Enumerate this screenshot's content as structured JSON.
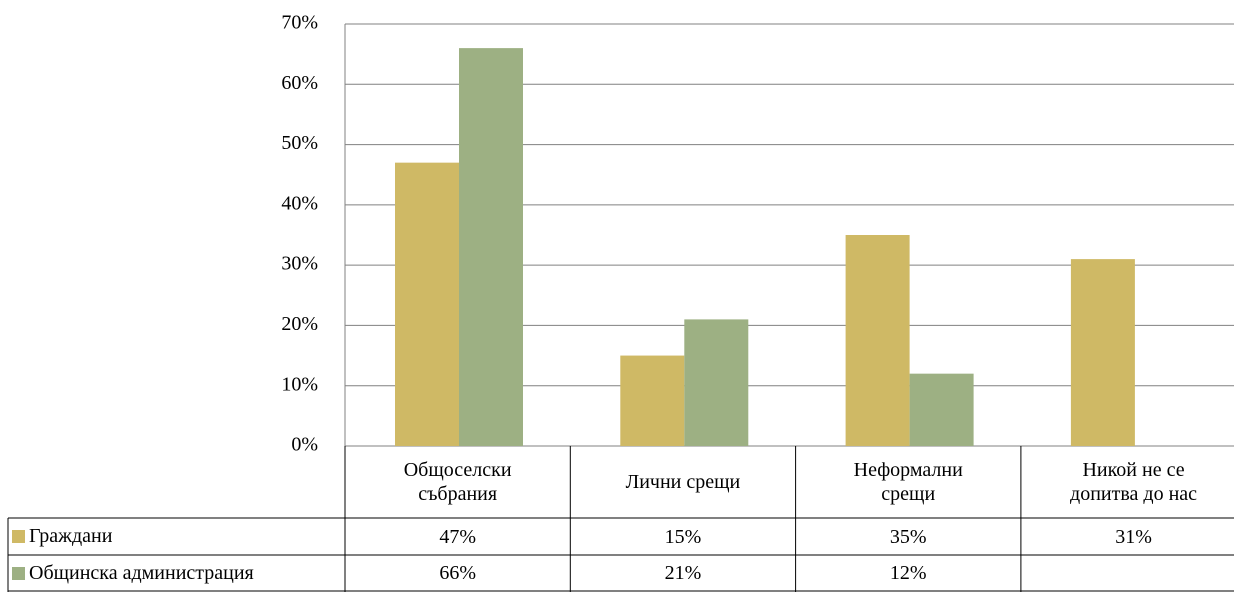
{
  "chart_data": {
    "type": "bar",
    "categories": [
      "Общоселски събрания",
      "Лични срещи",
      "Неформални срещи",
      "Никой не се допитва до нас"
    ],
    "series": [
      {
        "name": "Граждани",
        "color": "#cfb965",
        "values": [
          47,
          15,
          35,
          31
        ],
        "value_labels": [
          "47%",
          "15%",
          "35%",
          "31%"
        ]
      },
      {
        "name": "Общинска администрация",
        "color": "#9db083",
        "values": [
          66,
          21,
          12,
          null
        ],
        "value_labels": [
          "66%",
          "21%",
          "12%",
          null
        ]
      }
    ],
    "ylim": [
      0,
      70
    ],
    "yticks": [
      {
        "value": 0,
        "label": "0%"
      },
      {
        "value": 10,
        "label": "10%"
      },
      {
        "value": 20,
        "label": "20%"
      },
      {
        "value": 30,
        "label": "30%"
      },
      {
        "value": 40,
        "label": "40%"
      },
      {
        "value": 50,
        "label": "50%"
      },
      {
        "value": 60,
        "label": "60%"
      },
      {
        "value": 70,
        "label": "70%"
      }
    ],
    "grid": true,
    "legend": "table"
  }
}
